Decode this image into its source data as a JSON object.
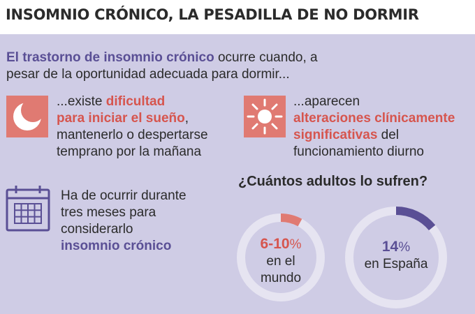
{
  "title": "INSOMNIO CRÓNICO, LA PESADILLA DE NO DORMIR",
  "intro": {
    "highlight": "El trastorno de insomnio crónico",
    "rest_line1": " ocurre cuando, a",
    "line2": "pesar de la oportunidad adecuada para dormir..."
  },
  "block_sleep": {
    "icon": "moon-icon",
    "l1_prefix": "...existe ",
    "l1_highlight": "dificultad",
    "l2_highlight": "para iniciar el sueño",
    "l2_suffix": ",",
    "l3": "mantenerlo o despertarse",
    "l4": "temprano por la mañana"
  },
  "block_day": {
    "icon": "sun-icon",
    "l1": "...aparecen",
    "l2_highlight": "alteraciones clínicamente",
    "l3_highlight": "significativas",
    "l3_suffix": " del",
    "l4": "funcionamiento diurno"
  },
  "block_duration": {
    "icon": "calendar-icon",
    "l1": "Ha de ocurrir durante",
    "l2": "tres meses para",
    "l3": "considerarlo",
    "l4_highlight": "insomnio crónico"
  },
  "question": "¿Cuántos adultos lo sufren?",
  "stats": [
    {
      "value": "6-10",
      "unit": "%",
      "label_l1": "en el",
      "label_l2": "mundo",
      "fraction": 0.08,
      "color": "#e07a72"
    },
    {
      "value": "14",
      "unit": "%",
      "label_l1": "en España",
      "fraction": 0.14,
      "color": "#5a4f95"
    }
  ],
  "colors": {
    "background_panel": "#cfcce5",
    "accent_red": "#e07a72",
    "accent_purple": "#5a4f95",
    "ring_track": "#e6e4f1"
  }
}
